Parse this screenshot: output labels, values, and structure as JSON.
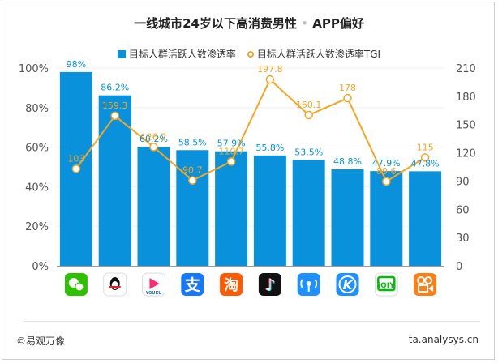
{
  "title": "一线城市24岁以下高消费男性",
  "title_sep": "•",
  "title_suffix": "APP偏好",
  "legend": {
    "bar": "目标人群活跃人数渗透率",
    "line": "目标人群活跃人数渗透率TGI"
  },
  "footer": {
    "left": "©易观万像",
    "right": "ta.analysys.cn"
  },
  "colors": {
    "bar": "#0a91db",
    "line": "#f5a623",
    "axis": "#888888"
  },
  "chart_data": {
    "type": "bar",
    "categories": [
      "微信",
      "QQ",
      "优酷",
      "支付宝",
      "淘宝",
      "抖音",
      "WiFi万能钥匙",
      "酷狗音乐",
      "爱奇艺",
      "快手"
    ],
    "icons": [
      "wechat-icon",
      "qq-icon",
      "youku-icon",
      "alipay-icon",
      "taobao-icon",
      "douyin-icon",
      "wifi-key-icon",
      "kugou-icon",
      "iqiyi-icon",
      "kuaishou-icon"
    ],
    "series": [
      {
        "name": "目标人群活跃人数渗透率",
        "type": "bar",
        "axis": "left",
        "unit": "%",
        "values": [
          98,
          86.2,
          60.2,
          58.5,
          57.9,
          55.8,
          53.5,
          48.8,
          47.9,
          47.8
        ]
      },
      {
        "name": "目标人群活跃人数渗透率TGI",
        "type": "line",
        "axis": "right",
        "values": [
          103,
          159.3,
          126.2,
          90.7,
          110.7,
          197.8,
          160.1,
          178,
          89.6,
          115
        ]
      }
    ],
    "y_left": {
      "min": 0,
      "max": 100,
      "ticks": [
        "0%",
        "20%",
        "40%",
        "60%",
        "80%",
        "100%"
      ]
    },
    "y_right": {
      "min": 0,
      "max": 210,
      "ticks": [
        "0",
        "30",
        "60",
        "90",
        "120",
        "150",
        "180",
        "210"
      ]
    }
  }
}
